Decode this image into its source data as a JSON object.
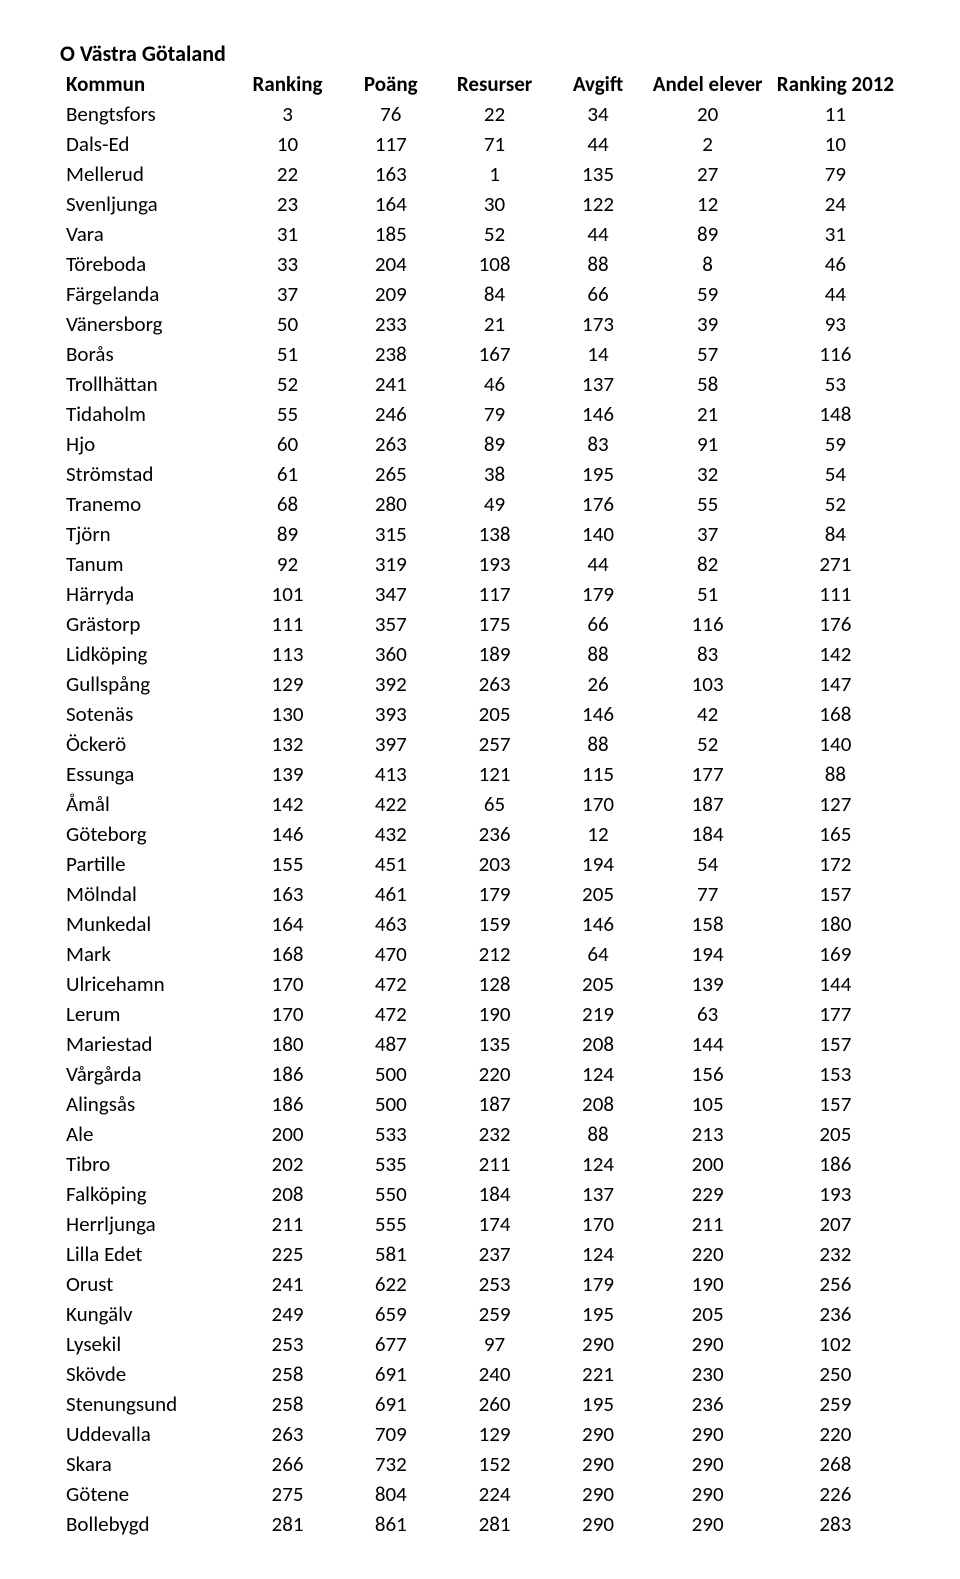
{
  "title": "O Västra Götaland",
  "table": {
    "columns": [
      "Kommun",
      "Ranking",
      "Poäng",
      "Resurser",
      "Avgift",
      "Andel elever",
      "Ranking 2012"
    ],
    "rows": [
      [
        "Bengtsfors",
        3,
        76,
        22,
        34,
        20,
        11
      ],
      [
        "Dals-Ed",
        10,
        117,
        71,
        44,
        2,
        10
      ],
      [
        "Mellerud",
        22,
        163,
        1,
        135,
        27,
        79
      ],
      [
        "Svenljunga",
        23,
        164,
        30,
        122,
        12,
        24
      ],
      [
        "Vara",
        31,
        185,
        52,
        44,
        89,
        31
      ],
      [
        "Töreboda",
        33,
        204,
        108,
        88,
        8,
        46
      ],
      [
        "Färgelanda",
        37,
        209,
        84,
        66,
        59,
        44
      ],
      [
        "Vänersborg",
        50,
        233,
        21,
        173,
        39,
        93
      ],
      [
        "Borås",
        51,
        238,
        167,
        14,
        57,
        116
      ],
      [
        "Trollhättan",
        52,
        241,
        46,
        137,
        58,
        53
      ],
      [
        "Tidaholm",
        55,
        246,
        79,
        146,
        21,
        148
      ],
      [
        "Hjo",
        60,
        263,
        89,
        83,
        91,
        59
      ],
      [
        "Strömstad",
        61,
        265,
        38,
        195,
        32,
        54
      ],
      [
        "Tranemo",
        68,
        280,
        49,
        176,
        55,
        52
      ],
      [
        "Tjörn",
        89,
        315,
        138,
        140,
        37,
        84
      ],
      [
        "Tanum",
        92,
        319,
        193,
        44,
        82,
        271
      ],
      [
        "Härryda",
        101,
        347,
        117,
        179,
        51,
        111
      ],
      [
        "Grästorp",
        111,
        357,
        175,
        66,
        116,
        176
      ],
      [
        "Lidköping",
        113,
        360,
        189,
        88,
        83,
        142
      ],
      [
        "Gullspång",
        129,
        392,
        263,
        26,
        103,
        147
      ],
      [
        "Sotenäs",
        130,
        393,
        205,
        146,
        42,
        168
      ],
      [
        "Öckerö",
        132,
        397,
        257,
        88,
        52,
        140
      ],
      [
        "Essunga",
        139,
        413,
        121,
        115,
        177,
        88
      ],
      [
        "Åmål",
        142,
        422,
        65,
        170,
        187,
        127
      ],
      [
        "Göteborg",
        146,
        432,
        236,
        12,
        184,
        165
      ],
      [
        "Partille",
        155,
        451,
        203,
        194,
        54,
        172
      ],
      [
        "Mölndal",
        163,
        461,
        179,
        205,
        77,
        157
      ],
      [
        "Munkedal",
        164,
        463,
        159,
        146,
        158,
        180
      ],
      [
        "Mark",
        168,
        470,
        212,
        64,
        194,
        169
      ],
      [
        "Ulricehamn",
        170,
        472,
        128,
        205,
        139,
        144
      ],
      [
        "Lerum",
        170,
        472,
        190,
        219,
        63,
        177
      ],
      [
        "Mariestad",
        180,
        487,
        135,
        208,
        144,
        157
      ],
      [
        "Vårgårda",
        186,
        500,
        220,
        124,
        156,
        153
      ],
      [
        "Alingsås",
        186,
        500,
        187,
        208,
        105,
        157
      ],
      [
        "Ale",
        200,
        533,
        232,
        88,
        213,
        205
      ],
      [
        "Tibro",
        202,
        535,
        211,
        124,
        200,
        186
      ],
      [
        "Falköping",
        208,
        550,
        184,
        137,
        229,
        193
      ],
      [
        "Herrljunga",
        211,
        555,
        174,
        170,
        211,
        207
      ],
      [
        "Lilla Edet",
        225,
        581,
        237,
        124,
        220,
        232
      ],
      [
        "Orust",
        241,
        622,
        253,
        179,
        190,
        256
      ],
      [
        "Kungälv",
        249,
        659,
        259,
        195,
        205,
        236
      ],
      [
        "Lysekil",
        253,
        677,
        97,
        290,
        290,
        102
      ],
      [
        "Skövde",
        258,
        691,
        240,
        221,
        230,
        250
      ],
      [
        "Stenungsund",
        258,
        691,
        260,
        195,
        236,
        259
      ],
      [
        "Uddevalla",
        263,
        709,
        129,
        290,
        290,
        220
      ],
      [
        "Skara",
        266,
        732,
        152,
        290,
        290,
        268
      ],
      [
        "Götene",
        275,
        804,
        224,
        290,
        290,
        226
      ],
      [
        "Bollebygd",
        281,
        861,
        281,
        290,
        290,
        283
      ]
    ]
  },
  "style": {
    "title_fontsize": 22,
    "table_fontsize": 21,
    "title_color": "#000000",
    "text_color": "#000000",
    "background_color": "#ffffff",
    "header_weight": "bold"
  }
}
